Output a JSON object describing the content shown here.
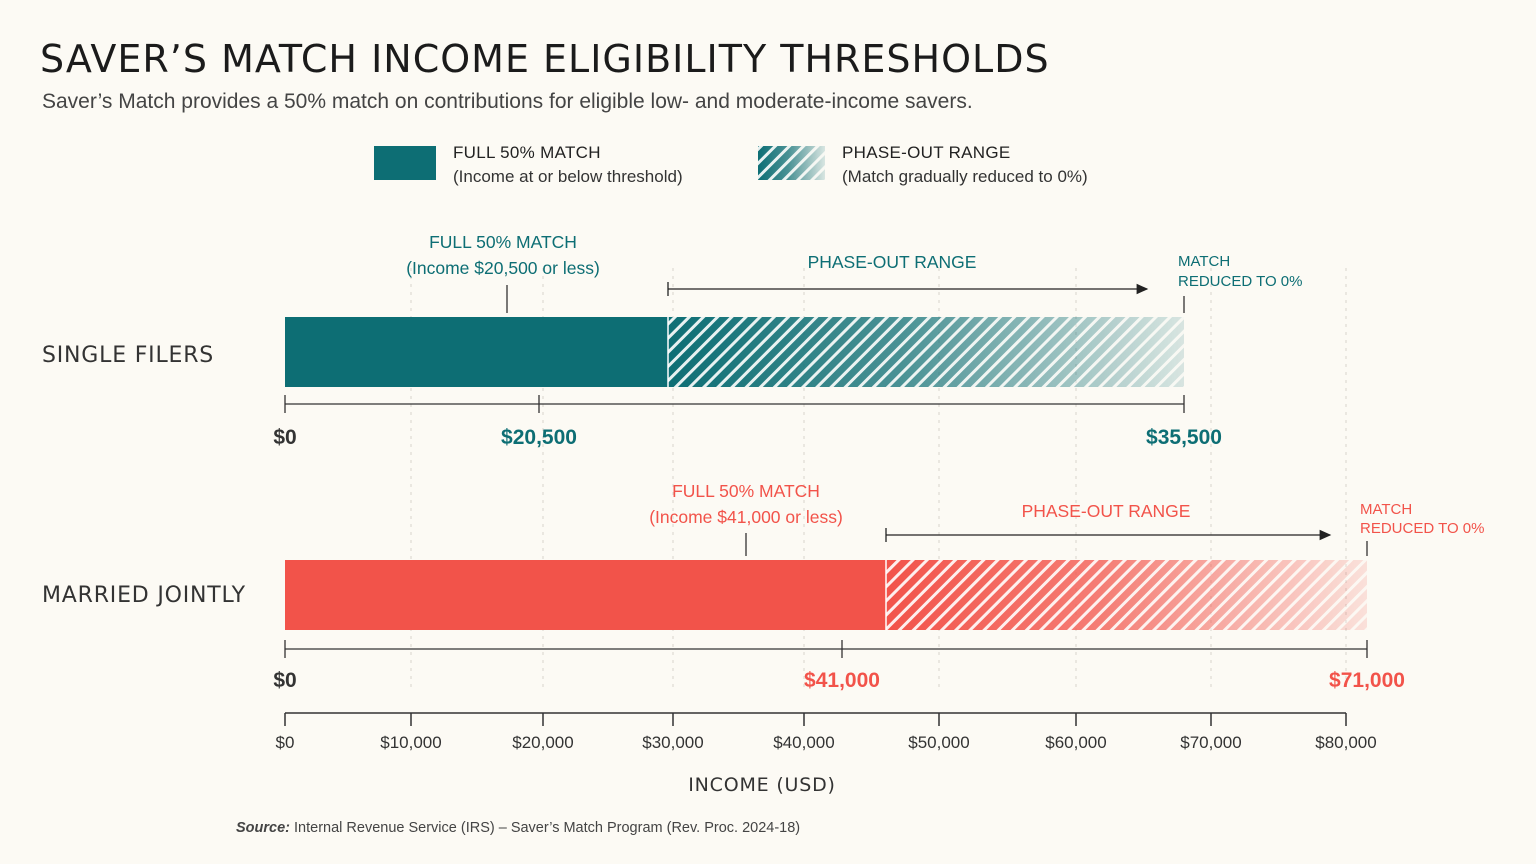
{
  "title": "SAVER’S MATCH INCOME ELIGIBILITY THRESHOLDS",
  "subtitle": "Saver’s Match provides a 50% match on contributions for eligible low- and moderate-income savers.",
  "legend": {
    "full": {
      "label": "FULL 50% MATCH",
      "sub": "(Income at or below threshold)"
    },
    "phase": {
      "label": "PHASE-OUT RANGE",
      "sub": "(Match gradually reduced to 0%)"
    }
  },
  "colors": {
    "single": "#0d6e74",
    "married": "#f2534a",
    "background": "#fcfaf4"
  },
  "chart_data": {
    "type": "bar",
    "orientation": "horizontal",
    "xlabel": "INCOME (USD)",
    "xlim": [
      0,
      80000
    ],
    "xticks": [
      0,
      10000,
      20000,
      30000,
      40000,
      50000,
      60000,
      70000,
      80000
    ],
    "xtick_labels": [
      "$0",
      "$10,000",
      "$20,000",
      "$30,000",
      "$40,000",
      "$50,000",
      "$60,000",
      "$70,000",
      "$80,000"
    ],
    "series": [
      {
        "name": "SINGLE FILERS",
        "full_match_max": 20500,
        "phase_out_max": 35500,
        "scale_labels": [
          "$0",
          "$20,500",
          "$35,500"
        ],
        "full_annotation": [
          "FULL 50% MATCH",
          "(Income $20,500 or less)"
        ],
        "phase_annotation": "PHASE-OUT RANGE",
        "end_annotation": [
          "MATCH",
          "REDUCED TO 0%"
        ]
      },
      {
        "name": "MARRIED JOINTLY",
        "full_match_max": 41000,
        "phase_out_max": 71000,
        "scale_labels": [
          "$0",
          "$41,000",
          "$71,000"
        ],
        "full_annotation": [
          "FULL 50% MATCH",
          "(Income $41,000 or less)"
        ],
        "phase_annotation": "PHASE-OUT RANGE",
        "end_annotation": [
          "MATCH",
          "REDUCED TO 0%"
        ]
      }
    ]
  },
  "source": {
    "label": "Source:",
    "text": " Internal Revenue Service (IRS) – Saver’s Match Program (Rev. Proc. 2024-18)"
  }
}
